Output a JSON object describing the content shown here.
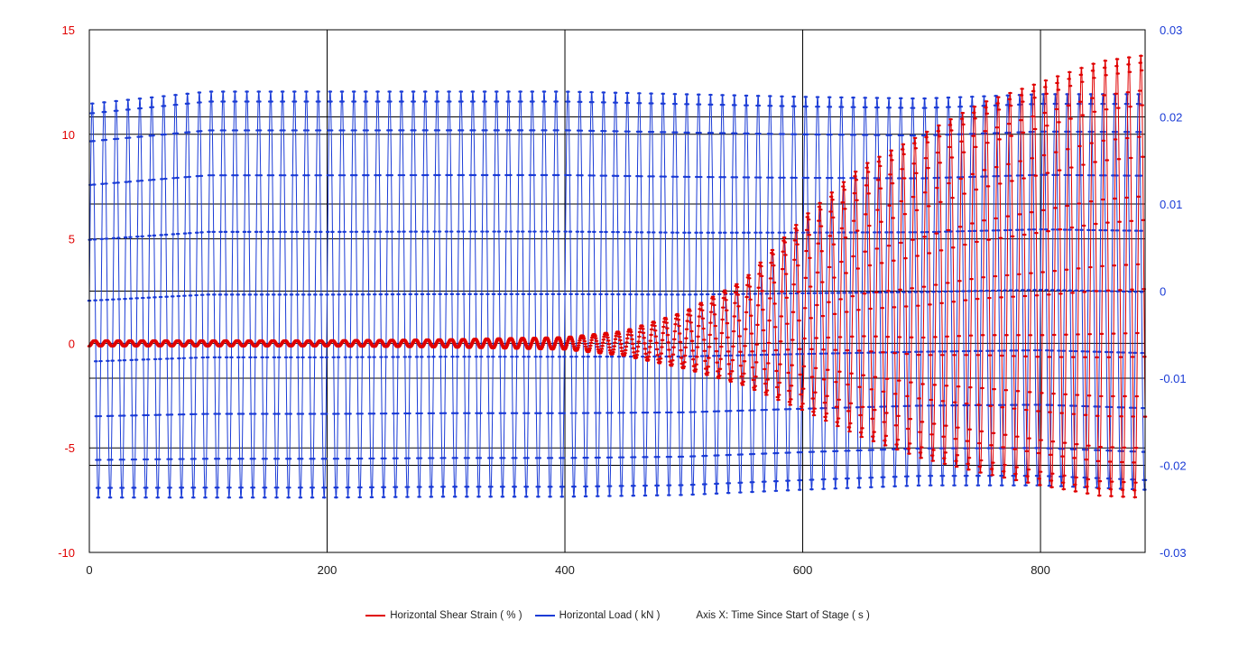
{
  "chart_data": {
    "type": "line",
    "title": "",
    "xlabel": "Axis X: Time Since Start of Stage ( s )",
    "xlim": [
      0,
      888
    ],
    "x_ticks": [
      0,
      200,
      400,
      600,
      800
    ],
    "y_left": {
      "label": "Horizontal Shear Strain ( % )",
      "lim": [
        -10,
        15
      ],
      "ticks": [
        -10,
        -5,
        0,
        5,
        10,
        15
      ],
      "color": "#e00000"
    },
    "y_right": {
      "label": "Horizontal Load ( kN )",
      "lim": [
        -0.03,
        0.03
      ],
      "ticks": [
        -0.03,
        -0.02,
        -0.01,
        0,
        0.01,
        0.02,
        0.03
      ],
      "tick_labels": [
        "-0.03",
        "-0.02",
        "-0.01",
        "0",
        "0.01",
        "0.02",
        "0.03"
      ],
      "color": "#1a3bd6"
    },
    "grid": true,
    "legend_position": "bottom",
    "period_s": 10,
    "series": [
      {
        "name": "Horizontal Shear Strain ( % )",
        "axis": "left",
        "color": "#e00000",
        "envelope_x": [
          0,
          100,
          200,
          300,
          400,
          450,
          500,
          550,
          600,
          650,
          700,
          750,
          800,
          850,
          888
        ],
        "envelope_max": [
          0.15,
          0.15,
          0.15,
          0.2,
          0.3,
          0.6,
          1.5,
          3.0,
          6.0,
          8.5,
          10.0,
          11.5,
          12.5,
          13.5,
          13.8
        ],
        "envelope_min": [
          -0.15,
          -0.15,
          -0.15,
          -0.2,
          -0.3,
          -0.6,
          -1.2,
          -2.0,
          -3.2,
          -4.5,
          -5.5,
          -6.2,
          -6.8,
          -7.3,
          -7.4
        ]
      },
      {
        "name": "Horizontal Load ( kN )",
        "axis": "right",
        "color": "#1a3bd6",
        "envelope_x": [
          0,
          100,
          200,
          300,
          400,
          500,
          600,
          700,
          800,
          888
        ],
        "envelope_max": [
          0.0215,
          0.0229,
          0.0229,
          0.0229,
          0.0229,
          0.0226,
          0.0223,
          0.0221,
          0.0226,
          0.0226
        ],
        "envelope_min": [
          -0.0237,
          -0.0237,
          -0.0237,
          -0.0236,
          -0.0236,
          -0.0234,
          -0.0228,
          -0.0223,
          -0.0223,
          -0.0228
        ]
      }
    ]
  },
  "legend": {
    "strain_label": "Horizontal Shear Strain ( % )",
    "load_label": "Horizontal Load ( kN )",
    "axis_x_label": "Axis X: Time Since Start of Stage ( s )"
  }
}
